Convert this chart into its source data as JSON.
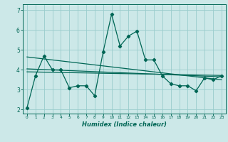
{
  "title": "",
  "xlabel": "Humidex (Indice chaleur)",
  "bg_color": "#cce8e8",
  "grid_color": "#99cccc",
  "line_color": "#006655",
  "xlim": [
    -0.5,
    23.5
  ],
  "ylim": [
    1.8,
    7.3
  ],
  "xticks": [
    0,
    1,
    2,
    3,
    4,
    5,
    6,
    7,
    8,
    9,
    10,
    11,
    12,
    13,
    14,
    15,
    16,
    17,
    18,
    19,
    20,
    21,
    22,
    23
  ],
  "yticks": [
    2,
    3,
    4,
    5,
    6,
    7
  ],
  "line1_x": [
    0,
    1,
    2,
    3,
    4,
    5,
    6,
    7,
    8,
    9,
    10,
    11,
    12,
    13,
    14,
    15,
    16,
    17,
    18,
    19,
    20,
    21,
    22,
    23
  ],
  "line1_y": [
    2.1,
    3.7,
    4.7,
    4.0,
    4.0,
    3.1,
    3.2,
    3.2,
    2.7,
    4.9,
    6.8,
    5.2,
    5.7,
    5.95,
    4.5,
    4.5,
    3.7,
    3.3,
    3.2,
    3.2,
    2.95,
    3.6,
    3.5,
    3.7
  ],
  "line2_x": [
    0,
    23
  ],
  "line2_y": [
    4.65,
    3.5
  ],
  "line3_x": [
    0,
    23
  ],
  "line3_y": [
    3.9,
    3.72
  ],
  "line4_x": [
    0,
    23
  ],
  "line4_y": [
    4.05,
    3.65
  ]
}
